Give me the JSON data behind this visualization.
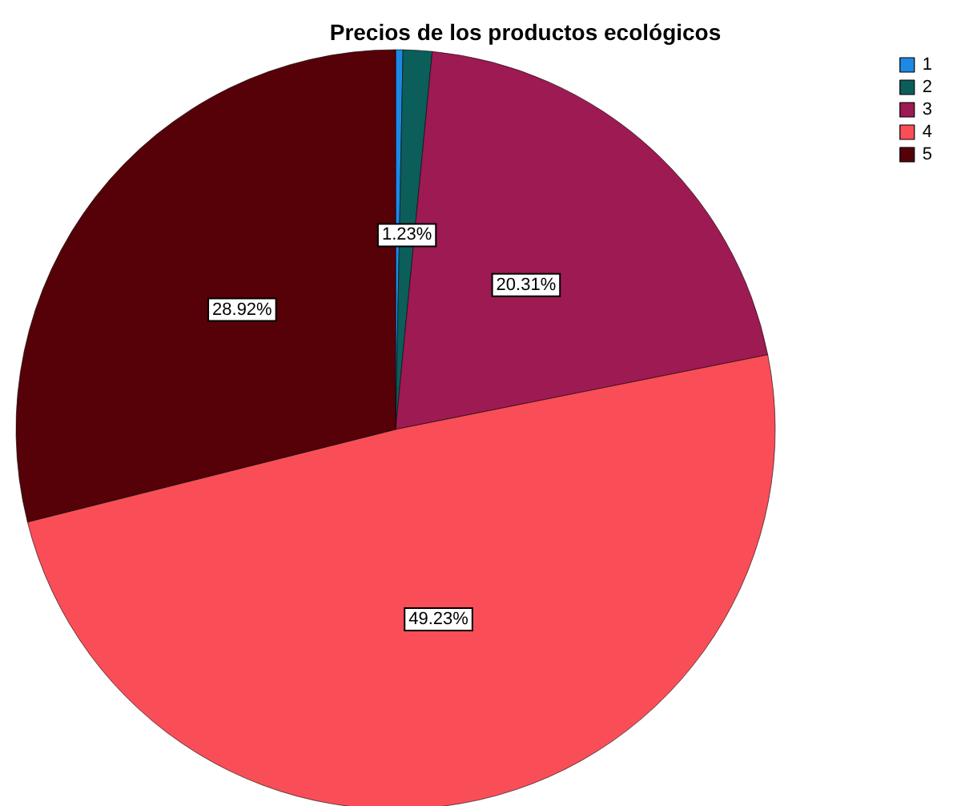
{
  "chart_data": {
    "type": "pie",
    "title": "Precios de los productos ecológicos",
    "categories": [
      "1",
      "2",
      "3",
      "4",
      "5"
    ],
    "values": [
      0.31,
      1.23,
      20.31,
      49.23,
      28.92
    ],
    "colors": [
      "#1e88e5",
      "#0b5e5a",
      "#9e1a52",
      "#f94e58",
      "#560008"
    ],
    "value_labels": [
      null,
      "1.23%",
      "20.31%",
      "49.23%",
      "28.92%"
    ],
    "legend": "top right"
  }
}
